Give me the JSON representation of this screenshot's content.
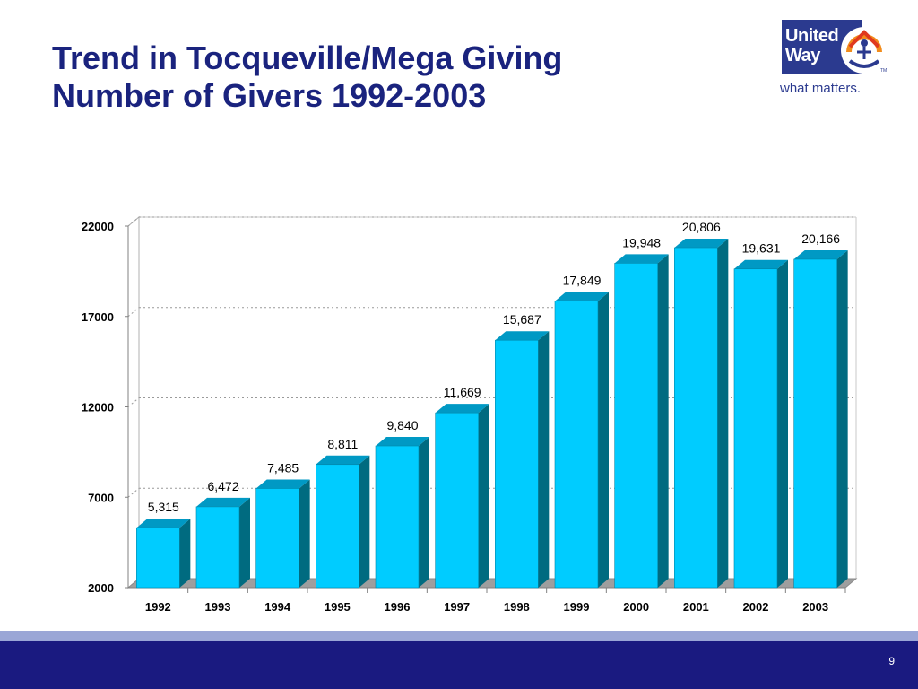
{
  "slide": {
    "title_line1": "Trend in Tocqueville/Mega Giving",
    "title_line2": "Number of Givers 1992-2003",
    "page_number": "9"
  },
  "logo": {
    "line1": "United",
    "line2": "Way",
    "tagline": "what matters.",
    "trademark": "TM"
  },
  "colors": {
    "title": "#1a237e",
    "bar_front": "#00ccff",
    "bar_top": "#0099c4",
    "bar_side": "#006b80",
    "footer_dark": "#1a1a80",
    "footer_light": "#9aa6d6"
  },
  "chart_data": {
    "type": "bar",
    "categories": [
      "1992",
      "1993",
      "1994",
      "1995",
      "1996",
      "1997",
      "1998",
      "1999",
      "2000",
      "2001",
      "2002",
      "2003"
    ],
    "values": [
      5315,
      6472,
      7485,
      8811,
      9840,
      11669,
      15687,
      17849,
      19948,
      20806,
      19631,
      20166
    ],
    "data_labels": [
      "5,315",
      "6,472",
      "7,485",
      "8,811",
      "9,840",
      "11,669",
      "15,687",
      "17,849",
      "19,948",
      "20,806",
      "19,631",
      "20,166"
    ],
    "yticks": [
      2000,
      7000,
      12000,
      17000,
      22000
    ],
    "ylim": [
      2000,
      22000
    ],
    "grid": true,
    "style": "3d"
  }
}
